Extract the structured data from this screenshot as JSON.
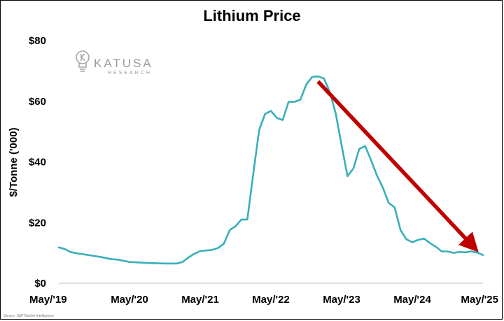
{
  "chart_data": {
    "type": "line",
    "title": "Lithium Price",
    "xlabel": "",
    "ylabel": "$/Tonne ('000)",
    "ylim": [
      0,
      80
    ],
    "yticks": [
      {
        "value": 0,
        "label": "$0"
      },
      {
        "value": 20,
        "label": "$20"
      },
      {
        "value": 40,
        "label": "$40"
      },
      {
        "value": 60,
        "label": "$60"
      },
      {
        "value": 80,
        "label": "$80"
      }
    ],
    "xlim": [
      "2019-05",
      "2025-05"
    ],
    "xticks": [
      {
        "value": "2019-05",
        "label": "May/'19"
      },
      {
        "value": "2020-05",
        "label": "May/'20"
      },
      {
        "value": "2021-05",
        "label": "May/'21"
      },
      {
        "value": "2022-05",
        "label": "May/'22"
      },
      {
        "value": "2023-05",
        "label": "May/'23"
      },
      {
        "value": "2024-05",
        "label": "May/'24"
      },
      {
        "value": "2025-05",
        "label": "May/'25"
      }
    ],
    "grid": false,
    "series": [
      {
        "color": "#3aafb9",
        "points": [
          [
            "2019-05",
            11.8
          ],
          [
            "2019-06",
            11.3
          ],
          [
            "2019-07",
            10.3
          ],
          [
            "2019-08",
            9.9
          ],
          [
            "2019-10",
            9.3
          ],
          [
            "2019-12",
            8.7
          ],
          [
            "2020-02",
            7.9
          ],
          [
            "2020-03",
            7.8
          ],
          [
            "2020-05",
            7.0
          ],
          [
            "2020-08",
            6.7
          ],
          [
            "2020-11",
            6.5
          ],
          [
            "2021-01",
            6.5
          ],
          [
            "2021-02",
            7.0
          ],
          [
            "2021-03",
            8.5
          ],
          [
            "2021-04",
            9.7
          ],
          [
            "2021-05",
            10.6
          ],
          [
            "2021-07",
            11.0
          ],
          [
            "2021-08",
            11.6
          ],
          [
            "2021-09",
            13.0
          ],
          [
            "2021-10",
            17.5
          ],
          [
            "2021-11",
            18.8
          ],
          [
            "2021-12",
            21.0
          ],
          [
            "2022-01",
            21.0
          ],
          [
            "2022-02",
            36.0
          ],
          [
            "2022-03",
            50.5
          ],
          [
            "2022-04",
            55.8
          ],
          [
            "2022-05",
            56.8
          ],
          [
            "2022-06",
            54.5
          ],
          [
            "2022-07",
            53.8
          ],
          [
            "2022-08",
            59.8
          ],
          [
            "2022-09",
            59.8
          ],
          [
            "2022-10",
            60.5
          ],
          [
            "2022-11",
            65.5
          ],
          [
            "2022-12",
            68.0
          ],
          [
            "2023-01",
            68.2
          ],
          [
            "2023-02",
            67.5
          ],
          [
            "2023-03",
            63.0
          ],
          [
            "2023-04",
            56.0
          ],
          [
            "2023-05",
            45.5
          ],
          [
            "2023-06",
            35.3
          ],
          [
            "2023-07",
            37.8
          ],
          [
            "2023-08",
            44.3
          ],
          [
            "2023-09",
            45.2
          ],
          [
            "2023-10",
            40.5
          ],
          [
            "2023-11",
            35.5
          ],
          [
            "2023-12",
            31.5
          ],
          [
            "2024-01",
            26.5
          ],
          [
            "2024-02",
            25.0
          ],
          [
            "2024-03",
            17.5
          ],
          [
            "2024-04",
            14.5
          ],
          [
            "2024-05",
            13.5
          ],
          [
            "2024-06",
            14.3
          ],
          [
            "2024-07",
            14.7
          ],
          [
            "2024-08",
            13.2
          ],
          [
            "2024-09",
            12.0
          ],
          [
            "2024-10",
            10.5
          ],
          [
            "2024-11",
            10.5
          ],
          [
            "2024-12",
            10.0
          ],
          [
            "2025-01",
            10.3
          ],
          [
            "2025-02",
            10.2
          ],
          [
            "2025-03",
            10.5
          ],
          [
            "2025-04",
            10.1
          ],
          [
            "2025-05",
            9.3
          ]
        ]
      }
    ],
    "annotations": [
      {
        "type": "arrow",
        "color": "#c00000",
        "from": [
          "2023-01",
          66.5
        ],
        "to": [
          "2025-03",
          12.8
        ]
      }
    ]
  },
  "logo": {
    "name": "KATUSA",
    "sub": "RESEARCH"
  },
  "source": "Source: S&P Market Intelligence"
}
